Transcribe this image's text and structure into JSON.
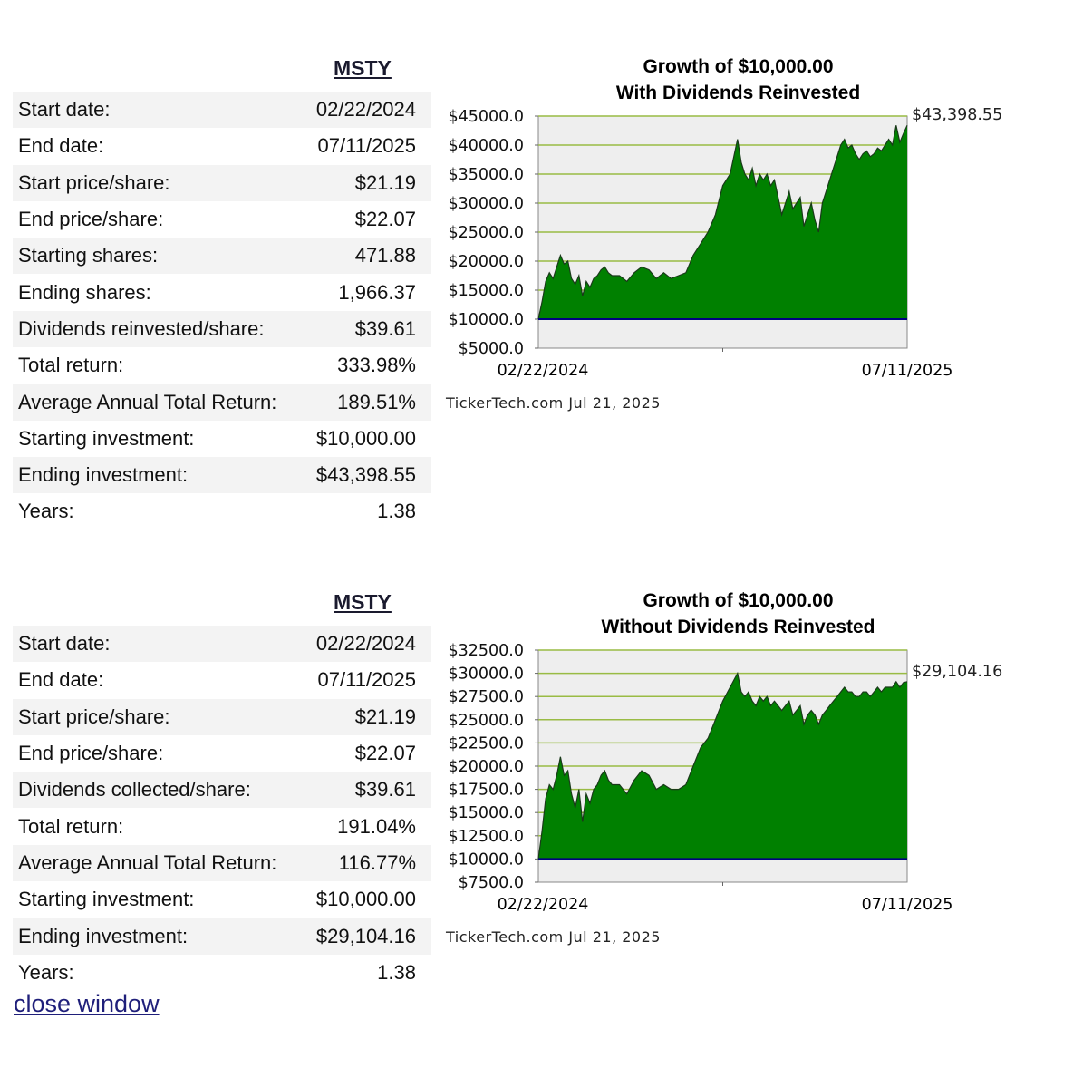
{
  "sections": [
    {
      "ticker": "MSTY",
      "rows": [
        {
          "label": "Start date:",
          "value": "02/22/2024"
        },
        {
          "label": "End date:",
          "value": "07/11/2025"
        },
        {
          "label": "Start price/share:",
          "value": "$21.19"
        },
        {
          "label": "End price/share:",
          "value": "$22.07"
        },
        {
          "label": "Starting shares:",
          "value": "471.88"
        },
        {
          "label": "Ending shares:",
          "value": "1,966.37"
        },
        {
          "label": "Dividends reinvested/share:",
          "value": "$39.61"
        },
        {
          "label": "Total return:",
          "value": "333.98%"
        },
        {
          "label": "Average Annual Total Return:",
          "value": "189.51%"
        },
        {
          "label": "Starting investment:",
          "value": "$10,000.00"
        },
        {
          "label": "Ending investment:",
          "value": "$43,398.55"
        },
        {
          "label": "Years:",
          "value": "1.38"
        }
      ]
    },
    {
      "ticker": "MSTY",
      "rows": [
        {
          "label": "Start date:",
          "value": "02/22/2024"
        },
        {
          "label": "End date:",
          "value": "07/11/2025"
        },
        {
          "label": "Start price/share:",
          "value": "$21.19"
        },
        {
          "label": "End price/share:",
          "value": "$22.07"
        },
        {
          "label": "Dividends collected/share:",
          "value": "$39.61"
        },
        {
          "label": "Total return:",
          "value": "191.04%"
        },
        {
          "label": "Average Annual Total Return:",
          "value": "116.77%"
        },
        {
          "label": "Starting investment:",
          "value": "$10,000.00"
        },
        {
          "label": "Ending investment:",
          "value": "$29,104.16"
        },
        {
          "label": "Years:",
          "value": "1.38"
        }
      ]
    }
  ],
  "chart_data": [
    {
      "type": "area",
      "title": "Growth of $10,000.00",
      "subtitle": "With Dividends Reinvested",
      "ylim": [
        5000,
        45000
      ],
      "yticks": [
        5000,
        10000,
        15000,
        20000,
        25000,
        30000,
        35000,
        40000,
        45000
      ],
      "ytick_labels": [
        "$5000.0",
        "$10000.0",
        "$15000.0",
        "$20000.0",
        "$25000.0",
        "$30000.0",
        "$35000.0",
        "$40000.0",
        "$45000.0"
      ],
      "x_labels": [
        "02/22/2024",
        "07/11/2025"
      ],
      "baseline": 10000,
      "end_label": "$43,398.55",
      "credit": "TickerTech.com  Jul 21, 2025",
      "fill_color": "#008000",
      "grid_color": "#99bb44",
      "baseline_color": "#000080",
      "x": [
        0,
        0.01,
        0.02,
        0.03,
        0.04,
        0.05,
        0.06,
        0.07,
        0.08,
        0.09,
        0.1,
        0.11,
        0.12,
        0.13,
        0.14,
        0.15,
        0.16,
        0.17,
        0.18,
        0.19,
        0.2,
        0.22,
        0.24,
        0.26,
        0.28,
        0.3,
        0.32,
        0.34,
        0.36,
        0.38,
        0.4,
        0.42,
        0.44,
        0.46,
        0.48,
        0.5,
        0.52,
        0.54,
        0.55,
        0.56,
        0.57,
        0.58,
        0.59,
        0.6,
        0.61,
        0.62,
        0.63,
        0.64,
        0.65,
        0.66,
        0.67,
        0.68,
        0.69,
        0.7,
        0.71,
        0.72,
        0.73,
        0.74,
        0.75,
        0.76,
        0.77,
        0.78,
        0.79,
        0.8,
        0.81,
        0.82,
        0.83,
        0.84,
        0.85,
        0.86,
        0.87,
        0.88,
        0.89,
        0.9,
        0.91,
        0.92,
        0.93,
        0.94,
        0.95,
        0.96,
        0.97,
        0.98,
        0.99,
        1.0
      ],
      "values": [
        10000,
        13000,
        16500,
        18000,
        17000,
        19000,
        21000,
        19500,
        20000,
        17000,
        16000,
        17500,
        14000,
        16500,
        15500,
        17000,
        17500,
        18500,
        19000,
        18000,
        17500,
        17500,
        16500,
        18000,
        19000,
        18500,
        17000,
        18000,
        17000,
        17500,
        18000,
        21000,
        23000,
        25000,
        28000,
        33000,
        35000,
        41000,
        37000,
        35000,
        34000,
        36000,
        33000,
        35000,
        34000,
        35000,
        33000,
        34000,
        31000,
        28000,
        30000,
        32000,
        29000,
        30000,
        31000,
        26000,
        28000,
        30000,
        27000,
        25000,
        30000,
        32000,
        34000,
        36000,
        38000,
        40000,
        41000,
        39500,
        40000,
        38500,
        37500,
        38500,
        39000,
        38000,
        38500,
        39500,
        39000,
        40000,
        41000,
        40000,
        43398.55,
        40500,
        42000,
        43398.55
      ]
    },
    {
      "type": "area",
      "title": "Growth of $10,000.00",
      "subtitle": "Without Dividends Reinvested",
      "ylim": [
        7500,
        32500
      ],
      "yticks": [
        7500,
        10000,
        12500,
        15000,
        17500,
        20000,
        22500,
        25000,
        27500,
        30000,
        32500
      ],
      "ytick_labels": [
        "$7500.0",
        "$10000.0",
        "$12500.0",
        "$15000.0",
        "$17500.0",
        "$20000.0",
        "$22500.0",
        "$25000.0",
        "$27500.0",
        "$30000.0",
        "$32500.0"
      ],
      "x_labels": [
        "02/22/2024",
        "07/11/2025"
      ],
      "baseline": 10000,
      "end_label": "$29,104.16",
      "credit": "TickerTech.com  Jul 21, 2025",
      "fill_color": "#008000",
      "grid_color": "#99bb44",
      "baseline_color": "#000080",
      "x": [
        0,
        0.01,
        0.02,
        0.03,
        0.04,
        0.05,
        0.06,
        0.07,
        0.08,
        0.09,
        0.1,
        0.11,
        0.12,
        0.13,
        0.14,
        0.15,
        0.16,
        0.17,
        0.18,
        0.19,
        0.2,
        0.22,
        0.24,
        0.26,
        0.28,
        0.3,
        0.32,
        0.34,
        0.36,
        0.38,
        0.4,
        0.42,
        0.44,
        0.46,
        0.48,
        0.5,
        0.52,
        0.54,
        0.55,
        0.56,
        0.57,
        0.58,
        0.59,
        0.6,
        0.61,
        0.62,
        0.63,
        0.64,
        0.65,
        0.66,
        0.67,
        0.68,
        0.69,
        0.7,
        0.71,
        0.72,
        0.73,
        0.74,
        0.75,
        0.76,
        0.77,
        0.78,
        0.79,
        0.8,
        0.81,
        0.82,
        0.83,
        0.84,
        0.85,
        0.86,
        0.87,
        0.88,
        0.89,
        0.9,
        0.91,
        0.92,
        0.93,
        0.94,
        0.95,
        0.96,
        0.97,
        0.98,
        0.99,
        1.0
      ],
      "values": [
        10000,
        13000,
        16500,
        18000,
        17500,
        19000,
        21000,
        19000,
        19500,
        17000,
        15500,
        17500,
        14000,
        17000,
        16000,
        17500,
        18000,
        19000,
        19500,
        18500,
        18000,
        18000,
        17000,
        18500,
        19500,
        19000,
        17500,
        18000,
        17500,
        17500,
        18000,
        20000,
        22000,
        23000,
        25000,
        27000,
        28500,
        30000,
        28000,
        27500,
        28000,
        27000,
        26500,
        27500,
        27000,
        27500,
        26500,
        27000,
        26500,
        26000,
        26500,
        27000,
        25500,
        26000,
        26500,
        24500,
        25500,
        26000,
        25500,
        24500,
        25500,
        26000,
        26500,
        27000,
        27500,
        28000,
        28500,
        28000,
        28000,
        27500,
        27500,
        28000,
        28000,
        27500,
        28000,
        28500,
        28000,
        28500,
        28500,
        28500,
        29104.16,
        28500,
        29000,
        29104.16
      ]
    }
  ],
  "footer": {
    "close_label": "close window"
  }
}
